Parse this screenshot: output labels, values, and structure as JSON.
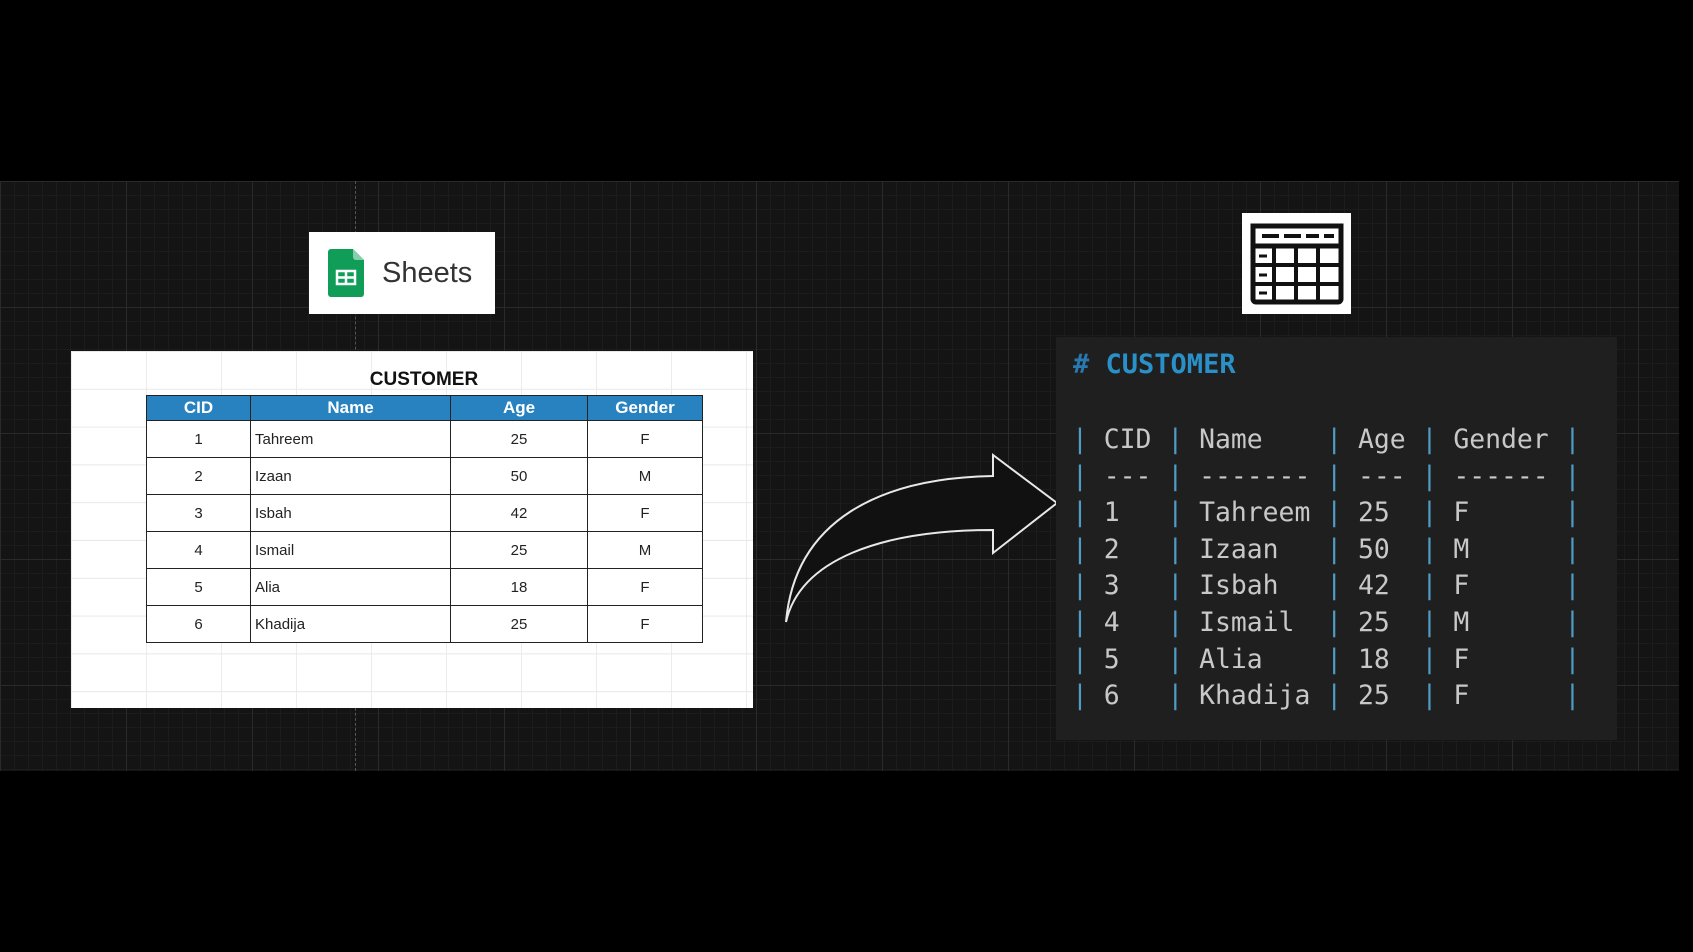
{
  "sheets_badge": {
    "label": "Sheets",
    "icon": "google-sheets-icon",
    "icon_color": "#0f9d58"
  },
  "spreadsheet": {
    "title": "CUSTOMER",
    "header_color": "#2882bf",
    "columns": [
      "CID",
      "Name",
      "Age",
      "Gender"
    ],
    "rows": [
      [
        "1",
        "Tahreem",
        "25",
        "F"
      ],
      [
        "2",
        "Izaan",
        "50",
        "M"
      ],
      [
        "3",
        "Isbah",
        "42",
        "F"
      ],
      [
        "4",
        "Ismail",
        "25",
        "M"
      ],
      [
        "5",
        "Alia",
        "18",
        "F"
      ],
      [
        "6",
        "Khadija",
        "25",
        "F"
      ]
    ]
  },
  "arrow": {
    "icon": "curved-arrow-right-icon"
  },
  "table_icon": {
    "icon": "table-icon"
  },
  "markdown": {
    "title_hash": "#",
    "title": "CUSTOMER",
    "title_color": "#2a90c8",
    "header": [
      "CID",
      "Name",
      "Age",
      "Gender"
    ],
    "separator": [
      "---",
      "-------",
      "---",
      "------"
    ],
    "rows": [
      [
        "1",
        "Tahreem",
        "25",
        "F"
      ],
      [
        "2",
        "Izaan",
        "50",
        "M"
      ],
      [
        "3",
        "Isbah",
        "42",
        "F"
      ],
      [
        "4",
        "Ismail",
        "25",
        "M"
      ],
      [
        "5",
        "Alia",
        "18",
        "F"
      ],
      [
        "6",
        "Khadija",
        "25",
        "F"
      ]
    ]
  }
}
